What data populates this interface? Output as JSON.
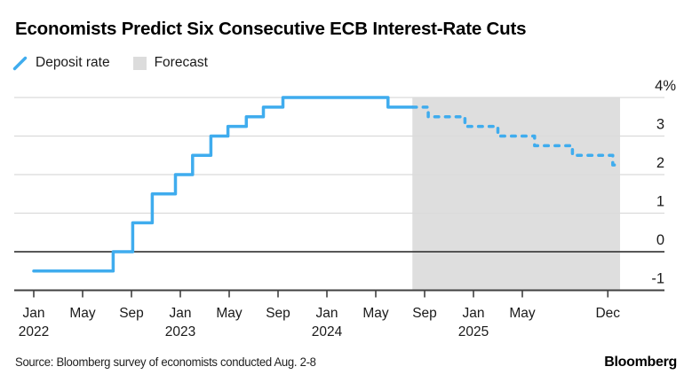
{
  "header": {
    "title": "Economists Predict Six Consecutive ECB Interest-Rate Cuts"
  },
  "legend": [
    {
      "id": "deposit-rate",
      "label": "Deposit rate",
      "swatch": "blue-slash",
      "color": "#3FACEE"
    },
    {
      "id": "forecast",
      "label": "Forecast",
      "swatch": "gray-square",
      "color": "#DCDCDC"
    }
  ],
  "chart_data": {
    "type": "line",
    "subtype": "step",
    "title": "Economists Predict Six Consecutive ECB Interest-Rate Cuts",
    "unit": "%",
    "ylabel": "",
    "xlabel": "",
    "ylim": [
      -1,
      4
    ],
    "grid": true,
    "y_axis": {
      "tick_labels": [
        "4%",
        "3",
        "2",
        "1",
        "0",
        "-1"
      ],
      "tick_values": [
        4,
        3,
        2,
        1,
        0,
        -1
      ],
      "side": "right"
    },
    "x_axis": {
      "ticks": [
        {
          "month": "Jan",
          "year": "2022",
          "m": 0
        },
        {
          "month": "May",
          "year": "",
          "m": 4
        },
        {
          "month": "Sep",
          "year": "",
          "m": 8
        },
        {
          "month": "Jan",
          "year": "2023",
          "m": 12
        },
        {
          "month": "May",
          "year": "",
          "m": 16
        },
        {
          "month": "Sep",
          "year": "",
          "m": 20
        },
        {
          "month": "Jan",
          "year": "2024",
          "m": 24
        },
        {
          "month": "May",
          "year": "",
          "m": 28
        },
        {
          "month": "Sep",
          "year": "",
          "m": 32
        },
        {
          "month": "Jan",
          "year": "2025",
          "m": 36
        },
        {
          "month": "May",
          "year": "",
          "m": 40
        },
        {
          "month": "Dec",
          "year": "",
          "m": 47
        }
      ]
    },
    "series": [
      {
        "name": "Deposit rate",
        "style": "solid",
        "color": "#3FACEE",
        "points": [
          {
            "date": "Jan 2022",
            "m": 0,
            "value": -0.5
          },
          {
            "date": "Jul 2022",
            "m": 6.5,
            "value": 0
          },
          {
            "date": "Sep 2022",
            "m": 8.1,
            "value": 0.75
          },
          {
            "date": "Nov 2022",
            "m": 9.7,
            "value": 1.5
          },
          {
            "date": "Dec 2022",
            "m": 11.6,
            "value": 2.0
          },
          {
            "date": "Feb 2023",
            "m": 13.0,
            "value": 2.5
          },
          {
            "date": "Mar 2023",
            "m": 14.5,
            "value": 3.0
          },
          {
            "date": "May 2023",
            "m": 15.9,
            "value": 3.25
          },
          {
            "date": "Jun 2023",
            "m": 17.4,
            "value": 3.5
          },
          {
            "date": "Aug 2023",
            "m": 18.8,
            "value": 3.75
          },
          {
            "date": "Sep 2023",
            "m": 20.4,
            "value": 4.0
          },
          {
            "date": "Jun 2024",
            "m": 29.0,
            "value": 3.75
          }
        ],
        "end_m": 31.0
      },
      {
        "name": "Deposit rate forecast",
        "style": "dashed",
        "color": "#3FACEE",
        "points": [
          {
            "date": "Aug 2024",
            "m": 31.0,
            "value": 3.75
          },
          {
            "date": "Sep 2024",
            "m": 32.3,
            "value": 3.5
          },
          {
            "date": "Dec 2024",
            "m": 35.3,
            "value": 3.25
          },
          {
            "date": "Mar 2025",
            "m": 38.0,
            "value": 3.0
          },
          {
            "date": "Jun 2025",
            "m": 41.0,
            "value": 2.75
          },
          {
            "date": "Sep 2025",
            "m": 44.1,
            "value": 2.5
          },
          {
            "date": "Dec 2025",
            "m": 47.4,
            "value": 2.25
          }
        ],
        "end_m": 47.9
      }
    ],
    "forecast_region": {
      "start_m": 31.0,
      "end_m": 48.0,
      "color": "#DEDEDE"
    }
  },
  "footer": {
    "source": "Source: Bloomberg survey of economists conducted Aug. 2-8",
    "brand": "Bloomberg"
  },
  "colors": {
    "line_blue": "#3FACEE",
    "forecast_gray": "#DEDEDE",
    "grid_light": "#DADADA",
    "axis_dark": "#404040",
    "text": "#1a1a1a"
  }
}
